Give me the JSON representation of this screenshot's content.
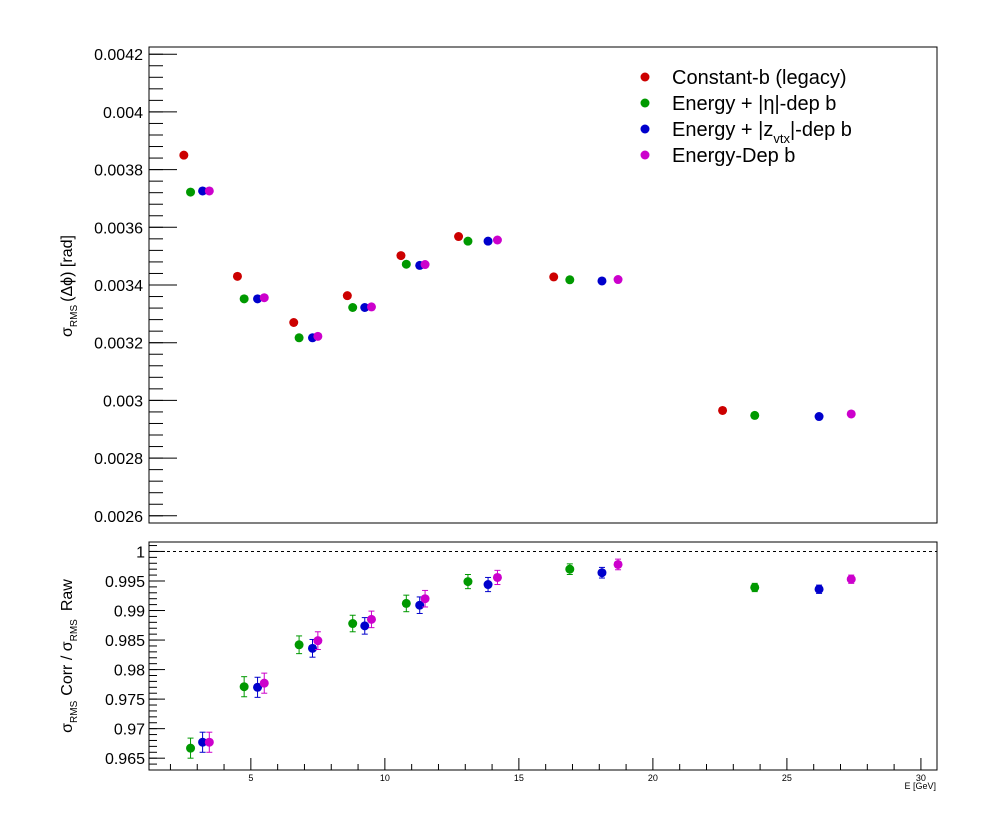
{
  "chart_data": [
    {
      "type": "scatter",
      "title": "",
      "ylabel_parts": {
        "sigma": "σ",
        "sub": "RMS",
        "rest": "(Δϕ) [rad]"
      },
      "xlim": [
        1.2,
        30.6
      ],
      "ylim": [
        0.002575,
        0.004225
      ],
      "y_ticks": [
        0.0026,
        0.0028,
        0.003,
        0.0032,
        0.0034,
        0.0036,
        0.0038,
        0.004,
        0.0042
      ],
      "y_tick_labels": [
        "0.0026",
        "0.0028",
        "0.003",
        "0.0032",
        "0.0034",
        "0.0036",
        "0.0038",
        "0.004",
        "0.0042"
      ],
      "grid": false,
      "legend_position": "top-right",
      "series": [
        {
          "name": "Constant-b (legacy)",
          "color": "#cc0000",
          "x": [
            2.5,
            4.5,
            6.6,
            8.6,
            10.6,
            12.75,
            16.3,
            22.6
          ],
          "y": [
            0.00385,
            0.00343,
            0.00327,
            0.003363,
            0.003502,
            0.003568,
            0.003428,
            0.002965
          ]
        },
        {
          "name": "Energy + |η|-dep b",
          "color": "#009900",
          "x": [
            2.75,
            4.75,
            6.8,
            8.8,
            10.8,
            13.1,
            16.9,
            23.8
          ],
          "y": [
            0.003722,
            0.003352,
            0.003217,
            0.003322,
            0.003472,
            0.003552,
            0.003418,
            0.002948
          ]
        },
        {
          "name": "Energy + |z_vtx|-dep b",
          "color": "#0000cc",
          "x": [
            3.2,
            5.25,
            7.3,
            9.25,
            11.3,
            13.85,
            18.1,
            26.2
          ],
          "y": [
            0.003726,
            0.003352,
            0.003217,
            0.003322,
            0.003468,
            0.003552,
            0.003414,
            0.002944
          ]
        },
        {
          "name": "Energy-Dep b",
          "color": "#cc00cc",
          "x": [
            3.45,
            5.5,
            7.5,
            9.5,
            11.5,
            14.2,
            18.7,
            27.4
          ],
          "y": [
            0.003726,
            0.003356,
            0.003222,
            0.003324,
            0.003471,
            0.003556,
            0.003419,
            0.002953
          ]
        }
      ]
    },
    {
      "type": "scatter",
      "title": "",
      "ylabel_parts": {
        "sigma": "σ",
        "sub": "RMS",
        "corr": "Corr / ",
        "raw": "Raw"
      },
      "xlabel": "E  [GeV]",
      "xlim": [
        1.2,
        30.6
      ],
      "ylim": [
        0.963,
        1.0016
      ],
      "x_ticks": [
        5,
        10,
        15,
        20,
        25,
        30
      ],
      "x_tick_labels": [
        "5",
        "10",
        "15",
        "20",
        "25",
        "30"
      ],
      "y_ticks": [
        0.965,
        0.97,
        0.975,
        0.98,
        0.985,
        0.99,
        0.995,
        1
      ],
      "y_tick_labels": [
        "0.965",
        "0.97",
        "0.975",
        "0.98",
        "0.985",
        "0.99",
        "0.995",
        "1"
      ],
      "reference_line": 1,
      "grid": false,
      "series": [
        {
          "name": "Energy + |η|-dep b",
          "color": "#009900",
          "x": [
            2.75,
            4.75,
            6.8,
            8.8,
            10.8,
            13.1,
            16.9,
            23.8
          ],
          "y": [
            0.9667,
            0.9771,
            0.9842,
            0.9878,
            0.9912,
            0.9949,
            0.997,
            0.9939
          ],
          "yerr": [
            0.0017,
            0.0017,
            0.0015,
            0.0014,
            0.0014,
            0.0012,
            0.0009,
            0.0007
          ]
        },
        {
          "name": "Energy + |z_vtx|-dep b",
          "color": "#0000cc",
          "x": [
            3.2,
            5.25,
            7.3,
            9.25,
            11.3,
            13.85,
            18.1,
            26.2
          ],
          "y": [
            0.9677,
            0.977,
            0.9836,
            0.9874,
            0.9909,
            0.9944,
            0.9964,
            0.9936
          ],
          "yerr": [
            0.0017,
            0.0017,
            0.0015,
            0.0014,
            0.0014,
            0.0012,
            0.0009,
            0.0007
          ]
        },
        {
          "name": "Energy-Dep b",
          "color": "#cc00cc",
          "x": [
            3.45,
            5.5,
            7.5,
            9.5,
            11.5,
            14.2,
            18.7,
            27.4
          ],
          "y": [
            0.9677,
            0.9777,
            0.9849,
            0.9885,
            0.992,
            0.9956,
            0.9978,
            0.9953
          ],
          "yerr": [
            0.0017,
            0.0017,
            0.0015,
            0.0014,
            0.0014,
            0.0012,
            0.0009,
            0.0007
          ]
        }
      ]
    }
  ]
}
